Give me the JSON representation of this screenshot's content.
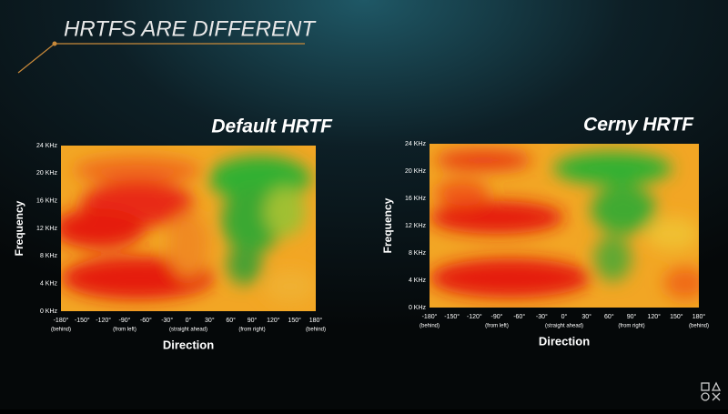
{
  "slide": {
    "title": "HRTFS ARE DIFFERENT",
    "panels": [
      {
        "title": "Default HRTF",
        "y_label": "Frequency",
        "x_label": "Direction",
        "y_ticks": [
          "24 KHz",
          "20 KHz",
          "16 KHz",
          "12 KHz",
          "8 KHz",
          "4 KHz",
          "0 KHz"
        ],
        "x_ticks": [
          "-180°",
          "-150°",
          "-120°",
          "-90°",
          "-60°",
          "-30°",
          "0°",
          "30°",
          "60°",
          "90°",
          "120°",
          "150°",
          "180°"
        ],
        "x_notes": [
          "(behind)",
          "(from left)",
          "(straight ahead)",
          "(from right)",
          "(behind)"
        ]
      },
      {
        "title": "Cerny HRTF",
        "y_label": "Frequency",
        "x_label": "Direction",
        "y_ticks": [
          "24 KHz",
          "20 KHz",
          "16 KHz",
          "12 KHz",
          "8 KHz",
          "4 KHz",
          "0 KHz"
        ],
        "x_ticks": [
          "-180°",
          "-150°",
          "-120°",
          "-90°",
          "-60°",
          "-30°",
          "0°",
          "30°",
          "60°",
          "90°",
          "120°",
          "150°",
          "180°"
        ],
        "x_notes": [
          "(behind)",
          "(from left)",
          "(straight ahead)",
          "(from right)",
          "(behind)"
        ]
      }
    ]
  }
}
